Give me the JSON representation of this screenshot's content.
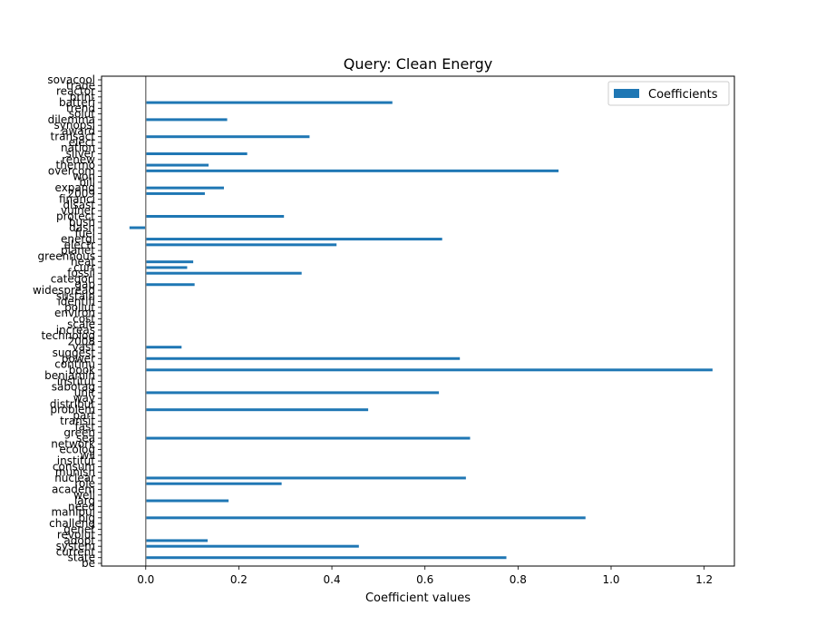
{
  "chart_data": {
    "type": "bar",
    "orientation": "horizontal",
    "title": "Query: Clean Energy",
    "xlabel": "Coefficient values",
    "ylabel": "",
    "xlim": [
      -0.095,
      1.265
    ],
    "xticks": [
      "0.0",
      "0.2",
      "0.4",
      "0.6",
      "0.8",
      "1.0",
      "1.2"
    ],
    "xtick_values": [
      0,
      0.2,
      0.4,
      0.6,
      0.8,
      1.0,
      1.2
    ],
    "reference_line_x": 0,
    "legend": {
      "position": "top-right",
      "label": "Coefficients"
    },
    "colors": {
      "bar": "#1f77b4",
      "reference_line": "#808080"
    },
    "categories": [
      "be",
      "state",
      "current",
      "system",
      "adopt",
      "revolut",
      "genet",
      "challeng",
      "big",
      "manipul",
      "need",
      "larg",
      "well",
      "academ",
      "role",
      "nuclear",
      "munish",
      "consum",
      "institut",
      "wil",
      "ecolog",
      "network",
      "sea",
      "green",
      "fast",
      "transit",
      "part",
      "problem",
      "distribut",
      "way",
      "unit",
      "sabotag",
      "institut",
      "benjamin",
      "book",
      "continu",
      "power",
      "suggest",
      "vast",
      "2008",
      "technolog",
      "increas",
      "scale",
      "cost",
      "environ",
      "pollut",
      "identifi",
      "sustain",
      "widespread",
      "gap",
      "categori",
      "fossil",
      "curr",
      "heat",
      "greenhous",
      "planet",
      "electr",
      "energi",
      "fuel",
      "dash",
      "bush",
      "protect",
      "vulner",
      "disast",
      "financi",
      "2009",
      "expand",
      "bill",
      "won",
      "overcom",
      "thermo",
      "renew",
      "silver",
      "nation",
      "elect",
      "transact",
      "award",
      "synopsi",
      "dilemma",
      "solut",
      "trend",
      "batteri",
      "print",
      "reactor",
      "trade",
      "sovacool"
    ],
    "values": [
      0,
      0.775,
      0,
      0.458,
      0.133,
      0,
      0,
      0,
      0.945,
      0,
      0,
      0.178,
      0,
      0,
      0.292,
      0.688,
      0,
      0,
      0,
      0,
      0,
      0,
      0.697,
      0,
      0,
      0,
      0,
      0.478,
      0,
      0,
      0.63,
      0,
      0,
      0,
      1.218,
      0,
      0.675,
      0,
      0.077,
      0,
      0,
      0,
      0,
      0,
      0,
      0,
      0,
      0,
      0,
      0.105,
      0,
      0.335,
      0.089,
      0.102,
      0,
      0,
      0.41,
      0.637,
      0,
      -0.035,
      0,
      0.297,
      0,
      0,
      0,
      0.127,
      0.168,
      0,
      0,
      0.887,
      0.135,
      0,
      0.218,
      0,
      0,
      0.352,
      0,
      0,
      0.175,
      0,
      0,
      0.53,
      0,
      0,
      0,
      0
    ]
  }
}
